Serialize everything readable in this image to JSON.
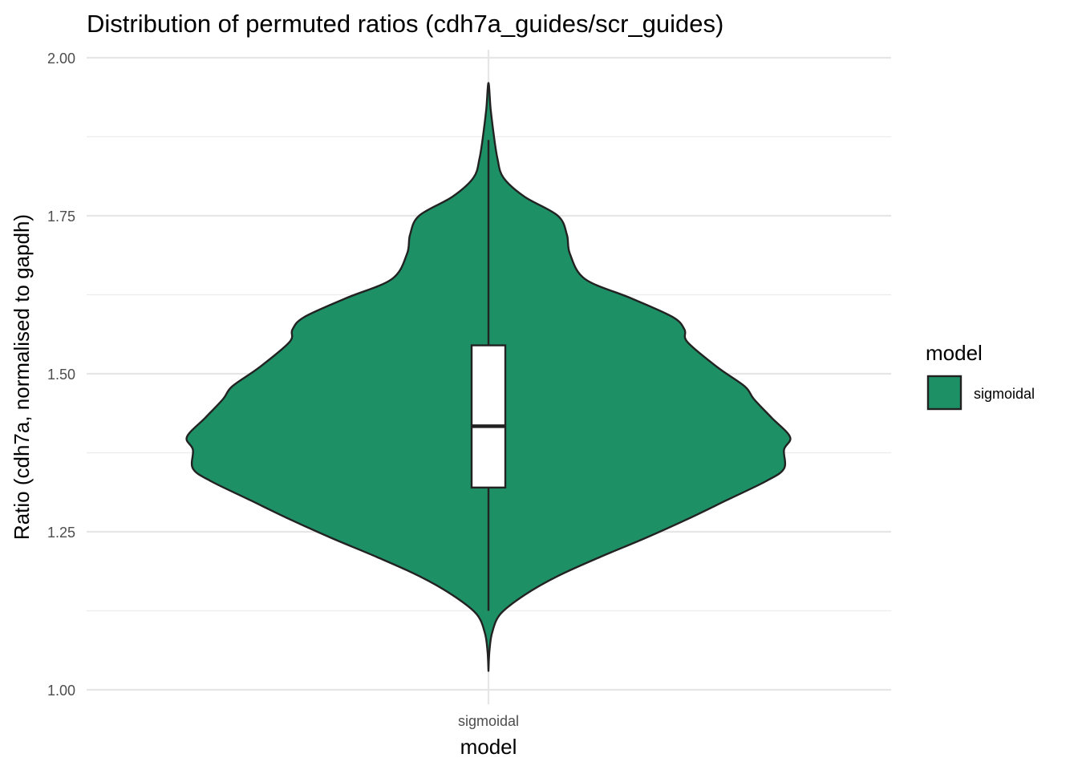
{
  "chart_data": {
    "type": "violin",
    "title": "Distribution of permuted ratios (cdh7a_guides/scr_guides)",
    "xlabel": "model",
    "ylabel": "Ratio (cdh7a, normalised to gapdh)",
    "categories": [
      "sigmoidal"
    ],
    "ylim": [
      1.0,
      2.0
    ],
    "y_ticks": [
      1.0,
      1.25,
      1.5,
      1.75,
      2.0
    ],
    "y_tick_labels": [
      "1.00",
      "1.25",
      "1.50",
      "1.75",
      "2.00"
    ],
    "grid": true,
    "fill_color": "#1e9066",
    "outline_color": "#222222",
    "legend": {
      "title": "model",
      "position": "right",
      "entries": [
        {
          "label": "sigmoidal",
          "color": "#1e9066"
        }
      ]
    },
    "violin": {
      "category": "sigmoidal",
      "density_profile": [
        {
          "y": 1.03,
          "w": 0.0
        },
        {
          "y": 1.06,
          "w": 0.003
        },
        {
          "y": 1.09,
          "w": 0.012
        },
        {
          "y": 1.12,
          "w": 0.04
        },
        {
          "y": 1.15,
          "w": 0.12
        },
        {
          "y": 1.18,
          "w": 0.23
        },
        {
          "y": 1.21,
          "w": 0.37
        },
        {
          "y": 1.24,
          "w": 0.52
        },
        {
          "y": 1.27,
          "w": 0.66
        },
        {
          "y": 1.3,
          "w": 0.79
        },
        {
          "y": 1.33,
          "w": 0.92
        },
        {
          "y": 1.35,
          "w": 0.98
        },
        {
          "y": 1.38,
          "w": 0.98
        },
        {
          "y": 1.4,
          "w": 1.0
        },
        {
          "y": 1.43,
          "w": 0.94
        },
        {
          "y": 1.46,
          "w": 0.88
        },
        {
          "y": 1.48,
          "w": 0.85
        },
        {
          "y": 1.51,
          "w": 0.76
        },
        {
          "y": 1.55,
          "w": 0.66
        },
        {
          "y": 1.57,
          "w": 0.65
        },
        {
          "y": 1.59,
          "w": 0.61
        },
        {
          "y": 1.62,
          "w": 0.47
        },
        {
          "y": 1.65,
          "w": 0.32
        },
        {
          "y": 1.69,
          "w": 0.27
        },
        {
          "y": 1.72,
          "w": 0.26
        },
        {
          "y": 1.75,
          "w": 0.23
        },
        {
          "y": 1.78,
          "w": 0.12
        },
        {
          "y": 1.81,
          "w": 0.05
        },
        {
          "y": 1.84,
          "w": 0.03
        },
        {
          "y": 1.88,
          "w": 0.017
        },
        {
          "y": 1.92,
          "w": 0.007
        },
        {
          "y": 1.96,
          "w": 0.0
        }
      ]
    },
    "boxplot": {
      "category": "sigmoidal",
      "whisker_low": 1.125,
      "q1": 1.32,
      "median": 1.417,
      "q3": 1.545,
      "whisker_high": 1.87
    }
  }
}
